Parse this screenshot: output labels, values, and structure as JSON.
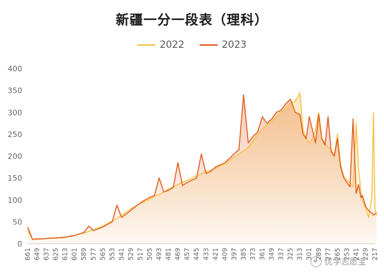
{
  "chart_data": {
    "type": "line",
    "title": "新疆一分一段表（理科）",
    "xlabel": "",
    "ylabel": "",
    "ylim": [
      0,
      400
    ],
    "yticks": [
      0,
      50,
      100,
      150,
      200,
      250,
      300,
      350,
      400
    ],
    "x_tick_labels": [
      "661",
      "649",
      "637",
      "625",
      "613",
      "601",
      "589",
      "577",
      "565",
      "553",
      "541",
      "529",
      "517",
      "505",
      "493",
      "481",
      "469",
      "457",
      "445",
      "433",
      "421",
      "409",
      "397",
      "385",
      "373",
      "361",
      "349",
      "337",
      "325",
      "313",
      "301",
      "289",
      "277",
      "265",
      "253",
      "241",
      "229",
      "217"
    ],
    "x_range": [
      661,
      217
    ],
    "legend_position": "top-center",
    "grid": false,
    "series": [
      {
        "name": "2022",
        "color": "#f5c242",
        "points": [
          [
            661,
            30
          ],
          [
            655,
            10
          ],
          [
            649,
            10
          ],
          [
            643,
            11
          ],
          [
            637,
            12
          ],
          [
            631,
            12
          ],
          [
            625,
            14
          ],
          [
            619,
            13
          ],
          [
            613,
            14
          ],
          [
            607,
            16
          ],
          [
            601,
            19
          ],
          [
            595,
            22
          ],
          [
            589,
            24
          ],
          [
            583,
            28
          ],
          [
            577,
            31
          ],
          [
            571,
            36
          ],
          [
            565,
            40
          ],
          [
            559,
            46
          ],
          [
            553,
            52
          ],
          [
            547,
            58
          ],
          [
            541,
            65
          ],
          [
            535,
            72
          ],
          [
            529,
            80
          ],
          [
            523,
            86
          ],
          [
            517,
            92
          ],
          [
            511,
            96
          ],
          [
            505,
            102
          ],
          [
            499,
            108
          ],
          [
            493,
            112
          ],
          [
            487,
            118
          ],
          [
            481,
            125
          ],
          [
            475,
            130
          ],
          [
            469,
            135
          ],
          [
            463,
            140
          ],
          [
            457,
            145
          ],
          [
            451,
            150
          ],
          [
            445,
            155
          ],
          [
            439,
            160
          ],
          [
            433,
            165
          ],
          [
            427,
            168
          ],
          [
            421,
            172
          ],
          [
            415,
            178
          ],
          [
            409,
            182
          ],
          [
            403,
            190
          ],
          [
            397,
            198
          ],
          [
            391,
            205
          ],
          [
            385,
            212
          ],
          [
            379,
            220
          ],
          [
            373,
            235
          ],
          [
            367,
            250
          ],
          [
            361,
            262
          ],
          [
            355,
            272
          ],
          [
            349,
            280
          ],
          [
            343,
            290
          ],
          [
            337,
            300
          ],
          [
            331,
            310
          ],
          [
            325,
            320
          ],
          [
            319,
            325
          ],
          [
            313,
            345
          ],
          [
            309,
            260
          ],
          [
            305,
            240
          ],
          [
            301,
            230
          ],
          [
            297,
            240
          ],
          [
            293,
            260
          ],
          [
            289,
            300
          ],
          [
            285,
            240
          ],
          [
            281,
            230
          ],
          [
            277,
            220
          ],
          [
            273,
            215
          ],
          [
            269,
            200
          ],
          [
            265,
            250
          ],
          [
            261,
            180
          ],
          [
            257,
            155
          ],
          [
            253,
            145
          ],
          [
            249,
            140
          ],
          [
            245,
            130
          ],
          [
            241,
            275
          ],
          [
            238,
            170
          ],
          [
            235,
            120
          ],
          [
            233,
            100
          ],
          [
            229,
            80
          ],
          [
            225,
            60
          ],
          [
            221,
            110
          ],
          [
            219,
            300
          ],
          [
            217,
            80
          ],
          [
            215,
            65
          ]
        ]
      },
      {
        "name": "2023",
        "color": "#e0591b",
        "points": [
          [
            661,
            38
          ],
          [
            655,
            10
          ],
          [
            649,
            11
          ],
          [
            643,
            11
          ],
          [
            637,
            12
          ],
          [
            631,
            13
          ],
          [
            625,
            13
          ],
          [
            619,
            14
          ],
          [
            613,
            15
          ],
          [
            607,
            17
          ],
          [
            601,
            19
          ],
          [
            595,
            22
          ],
          [
            589,
            26
          ],
          [
            583,
            40
          ],
          [
            577,
            30
          ],
          [
            571,
            34
          ],
          [
            565,
            38
          ],
          [
            559,
            44
          ],
          [
            553,
            50
          ],
          [
            547,
            88
          ],
          [
            541,
            60
          ],
          [
            535,
            68
          ],
          [
            529,
            76
          ],
          [
            523,
            85
          ],
          [
            517,
            93
          ],
          [
            511,
            100
          ],
          [
            505,
            106
          ],
          [
            499,
            110
          ],
          [
            493,
            150
          ],
          [
            487,
            118
          ],
          [
            481,
            122
          ],
          [
            475,
            128
          ],
          [
            469,
            185
          ],
          [
            463,
            133
          ],
          [
            457,
            140
          ],
          [
            451,
            145
          ],
          [
            445,
            150
          ],
          [
            439,
            205
          ],
          [
            433,
            160
          ],
          [
            427,
            165
          ],
          [
            421,
            175
          ],
          [
            415,
            180
          ],
          [
            409,
            185
          ],
          [
            403,
            195
          ],
          [
            397,
            205
          ],
          [
            391,
            215
          ],
          [
            385,
            340
          ],
          [
            379,
            230
          ],
          [
            373,
            245
          ],
          [
            367,
            255
          ],
          [
            361,
            290
          ],
          [
            355,
            275
          ],
          [
            349,
            285
          ],
          [
            343,
            300
          ],
          [
            337,
            305
          ],
          [
            331,
            320
          ],
          [
            325,
            330
          ],
          [
            319,
            300
          ],
          [
            313,
            295
          ],
          [
            309,
            250
          ],
          [
            305,
            240
          ],
          [
            301,
            290
          ],
          [
            297,
            260
          ],
          [
            293,
            230
          ],
          [
            289,
            295
          ],
          [
            285,
            240
          ],
          [
            281,
            225
          ],
          [
            277,
            290
          ],
          [
            273,
            210
          ],
          [
            269,
            200
          ],
          [
            265,
            240
          ],
          [
            261,
            175
          ],
          [
            257,
            150
          ],
          [
            253,
            140
          ],
          [
            249,
            130
          ],
          [
            245,
            285
          ],
          [
            241,
            115
          ],
          [
            238,
            135
          ],
          [
            235,
            105
          ],
          [
            233,
            110
          ],
          [
            229,
            85
          ],
          [
            225,
            75
          ],
          [
            221,
            70
          ],
          [
            219,
            65
          ],
          [
            217,
            68
          ],
          [
            215,
            70
          ]
        ]
      }
    ]
  },
  "watermark": {
    "text": "优学志愿宝",
    "icon": "wechat-icon"
  }
}
